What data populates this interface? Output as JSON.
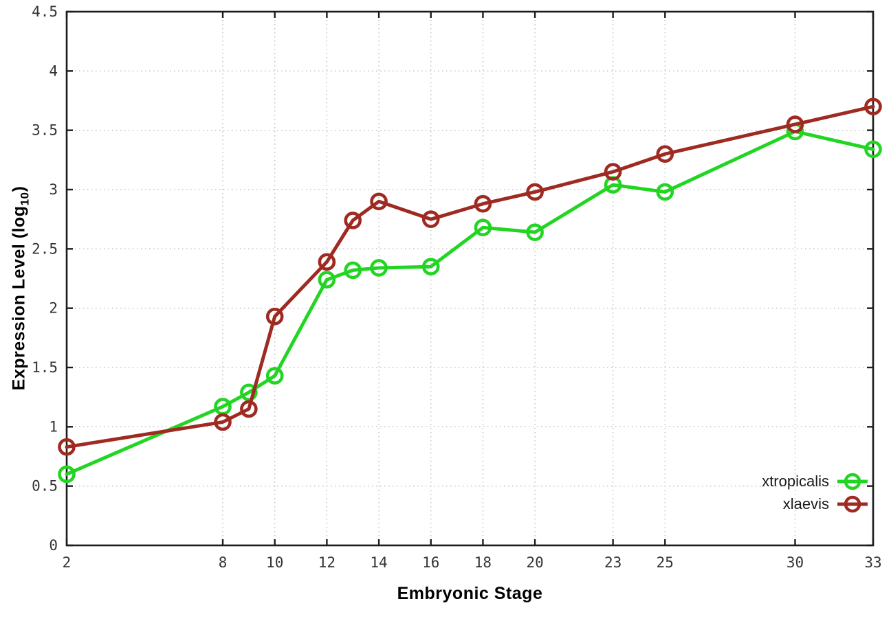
{
  "chart_data": {
    "type": "line",
    "title": "",
    "xlabel": "Embryonic Stage",
    "ylabel_prefix": "Expression Level (log",
    "ylabel_sub": "10",
    "ylabel_suffix": ")",
    "x": [
      2,
      8,
      9,
      10,
      12,
      13,
      14,
      16,
      18,
      20,
      23,
      25,
      30,
      33
    ],
    "series": [
      {
        "name": "xtropicalis",
        "color": "#23d523",
        "values": [
          0.6,
          1.17,
          1.29,
          1.43,
          2.24,
          2.32,
          2.34,
          2.35,
          2.68,
          2.64,
          3.04,
          2.98,
          3.49,
          3.34
        ]
      },
      {
        "name": "xlaevis",
        "color": "#9e2a21",
        "values": [
          0.83,
          1.04,
          1.15,
          1.93,
          2.39,
          2.74,
          2.9,
          2.75,
          2.88,
          2.98,
          3.15,
          3.3,
          3.55,
          3.7
        ]
      }
    ],
    "xlim": [
      2,
      33
    ],
    "ylim": [
      0,
      4.5
    ],
    "x_ticks": [
      2,
      8,
      10,
      12,
      14,
      16,
      18,
      20,
      23,
      25,
      30,
      33
    ],
    "x_tick_labels": [
      "2",
      "8",
      "10",
      "12",
      "14",
      "16",
      "18",
      "20",
      "23",
      "25",
      "30",
      "33"
    ],
    "y_ticks": [
      0,
      0.5,
      1,
      1.5,
      2,
      2.5,
      3,
      3.5,
      4,
      4.5
    ],
    "y_tick_labels": [
      "0",
      "0.5",
      "1",
      "1.5",
      "2",
      "2.5",
      "3",
      "3.5",
      "4",
      "4.5"
    ],
    "grid": true,
    "legend_position": "bottom-right",
    "marker": "open-circle",
    "colors": {
      "frame": "#1c1c1c",
      "grid": "#b9b9b9",
      "tick_label": "#333333",
      "background": "#ffffff"
    }
  }
}
